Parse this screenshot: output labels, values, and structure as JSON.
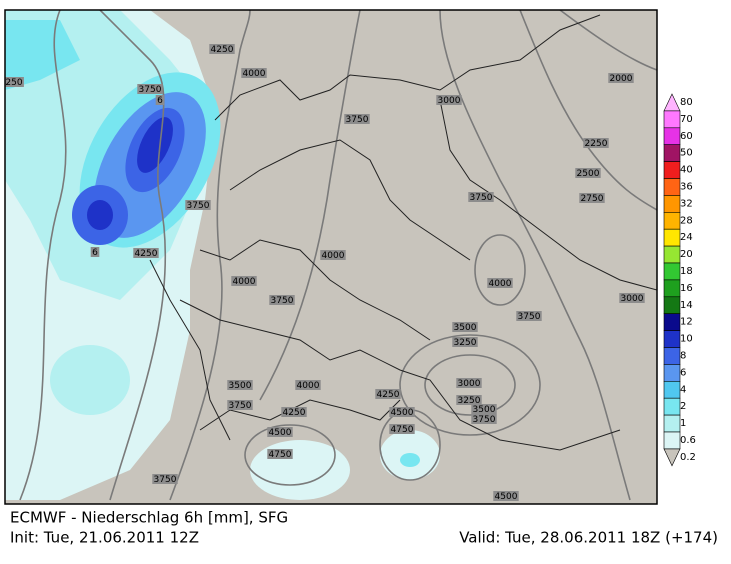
{
  "footer": {
    "title": "ECMWF - Niederschlag 6h [mm], SFG",
    "init": "Init: Tue, 21.06.2011 12Z",
    "valid": "Valid: Tue, 28.06.2011 18Z (+174)"
  },
  "contour_labels": [
    250,
    4250,
    4000,
    3750,
    6,
    3000,
    2000,
    3750,
    2250,
    2500,
    2750,
    3750,
    3750,
    4250,
    6,
    4000,
    4000,
    4000,
    3750,
    3000,
    3750,
    3500,
    3250,
    3000,
    3500,
    4000,
    3750,
    4250,
    3250,
    3500,
    3750,
    4500,
    4250,
    4500,
    4750,
    4750,
    3750,
    4500
  ],
  "legend": {
    "labels": [
      80,
      70,
      60,
      50,
      40,
      36,
      32,
      28,
      24,
      20,
      18,
      16,
      14,
      12,
      10,
      8,
      6,
      4,
      2,
      1,
      0.6,
      0.2
    ],
    "colors": [
      "#ffb4ff",
      "#ff78ff",
      "#e632e6",
      "#a01464",
      "#f01e1e",
      "#ff6414",
      "#ff9600",
      "#ffb400",
      "#ffe600",
      "#96e632",
      "#32c832",
      "#1ea01e",
      "#147814",
      "#0a0a8c",
      "#1e32c8",
      "#3c64e6",
      "#5a96f0",
      "#50c8f0",
      "#78e6f0",
      "#b4f0f0",
      "#dcf5f5",
      "#c8c4bc"
    ]
  }
}
